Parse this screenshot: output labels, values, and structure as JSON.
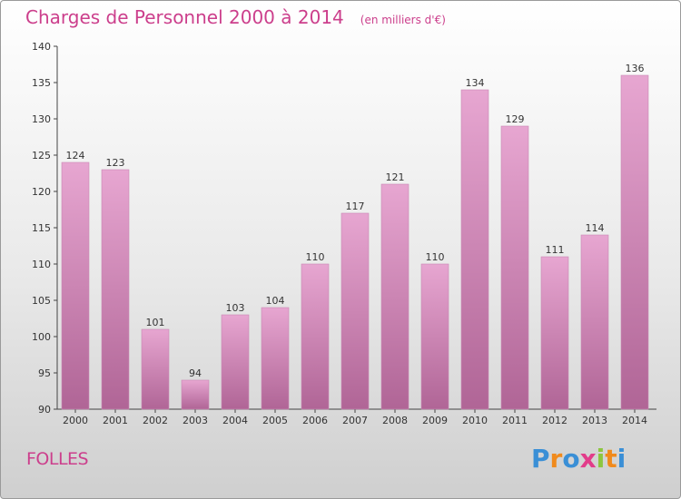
{
  "header": {
    "title": "Charges de Personnel 2000 à 2014",
    "subtitle": "(en milliers d'€)"
  },
  "commune": "FOLLES",
  "brand": {
    "letters": [
      "P",
      "r",
      "o",
      "x",
      "i",
      "t",
      "i"
    ],
    "colors": [
      "#3a8fd6",
      "#f08a1c",
      "#3a8fd6",
      "#e23c8a",
      "#8cc63f",
      "#f08a1c",
      "#3a8fd6"
    ]
  },
  "colors": {
    "bar_top": "#e7a6d1",
    "bar_bottom": "#b06596",
    "accent": "#cc3f8c"
  },
  "chart_data": {
    "type": "bar",
    "categories": [
      "2000",
      "2001",
      "2002",
      "2003",
      "2004",
      "2005",
      "2006",
      "2007",
      "2008",
      "2009",
      "2010",
      "2011",
      "2012",
      "2013",
      "2014"
    ],
    "values": [
      124,
      123,
      101,
      94,
      103,
      104,
      110,
      117,
      121,
      110,
      134,
      129,
      111,
      114,
      136
    ],
    "title": "Charges de Personnel 2000 à 2014",
    "xlabel": "",
    "ylabel": "",
    "ylim": [
      90,
      140
    ],
    "yticks": [
      90,
      95,
      100,
      105,
      110,
      115,
      120,
      125,
      130,
      135,
      140
    ],
    "grid": false,
    "legend": "none"
  }
}
